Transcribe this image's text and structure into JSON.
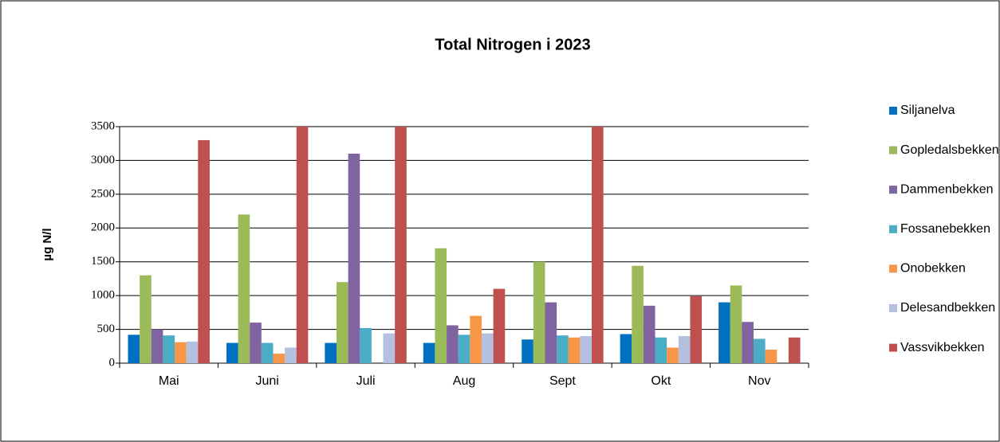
{
  "chart_data": {
    "type": "bar",
    "title": "Total Nitrogen i 2023",
    "y_label": "µg N/l",
    "categories": [
      "Mai",
      "Juni",
      "Juli",
      "Aug",
      "Sept",
      "Okt",
      "Nov"
    ],
    "series": [
      {
        "name": "Siljanelva",
        "color": "#0070c0",
        "values": [
          420,
          300,
          300,
          300,
          350,
          430,
          900
        ]
      },
      {
        "name": "Gopledalsbekken",
        "color": "#9bbb59",
        "values": [
          1300,
          2200,
          1200,
          1700,
          1500,
          1440,
          1150
        ]
      },
      {
        "name": "Dammenbekken",
        "color": "#8064a2",
        "values": [
          500,
          600,
          3100,
          560,
          900,
          850,
          610
        ]
      },
      {
        "name": "Fossanebekken",
        "color": "#4bacc6",
        "values": [
          410,
          300,
          520,
          420,
          410,
          380,
          360
        ]
      },
      {
        "name": "Onobekken",
        "color": "#f79646",
        "values": [
          310,
          140,
          null,
          700,
          380,
          230,
          200
        ]
      },
      {
        "name": "Delesandbekken",
        "color": "#b3c0de",
        "values": [
          320,
          230,
          440,
          440,
          400,
          400,
          null
        ]
      },
      {
        "name": "Vassvikbekken",
        "color": "#c0504d",
        "values": [
          3300,
          3500,
          3500,
          1100,
          3500,
          990,
          380
        ]
      }
    ],
    "ylim": [
      0,
      3500
    ],
    "yticks": [
      0,
      500,
      1000,
      1500,
      2000,
      2500,
      3000,
      3500
    ],
    "grid": true,
    "legend": "right"
  }
}
